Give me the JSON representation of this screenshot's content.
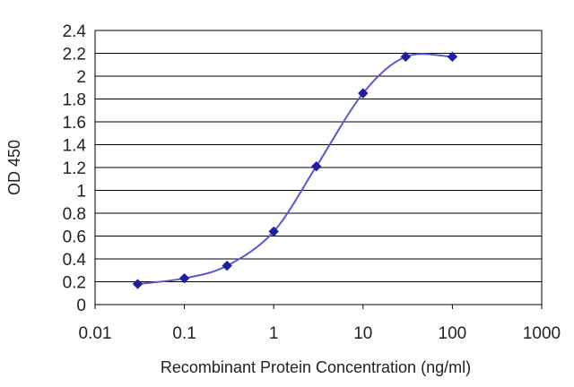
{
  "chart_data": {
    "type": "line",
    "title": "",
    "xlabel": "Recombinant Protein Concentration (ng/ml)",
    "ylabel": "OD 450",
    "x_scale": "log",
    "xlim": [
      0.01,
      1000
    ],
    "ylim": [
      0,
      2.4
    ],
    "x_ticks": [
      "0.01",
      "0.1",
      "1",
      "10",
      "100",
      "1000"
    ],
    "y_ticks": [
      "0",
      "0.2",
      "0.4",
      "0.6",
      "0.8",
      "1",
      "1.2",
      "1.4",
      "1.6",
      "1.8",
      "2",
      "2.2",
      "2.4"
    ],
    "grid": "horizontal",
    "legend": "none",
    "series": [
      {
        "x": [
          0.03,
          0.1,
          0.3,
          1,
          3,
          10,
          30,
          100
        ],
        "y": [
          0.18,
          0.23,
          0.34,
          0.64,
          1.21,
          1.85,
          2.17,
          2.17
        ],
        "color": "#1f1f9e",
        "line_color": "#5a5ad6"
      }
    ]
  }
}
